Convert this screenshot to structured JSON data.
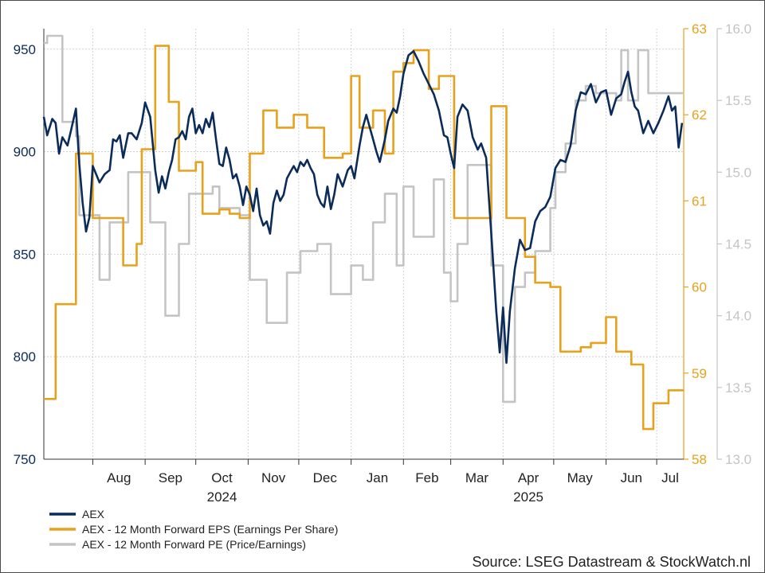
{
  "chart_data": {
    "type": "line",
    "x_months": [
      "Aug",
      "Sep",
      "Oct",
      "Nov",
      "Dec",
      "Jan",
      "Feb",
      "Mar",
      "Apr",
      "May",
      "Jun",
      "Jul"
    ],
    "x_years": [
      "2024",
      "2025"
    ],
    "x_range": [
      "2024-07-03",
      "2025-07-17"
    ],
    "grid": true,
    "legend_position": "bottom-left",
    "source": "Source: LSEG Datastream & StockWatch.nl",
    "axes": {
      "left": {
        "series": "AEX",
        "range": [
          750,
          960
        ],
        "ticks": [
          "750",
          "800",
          "850",
          "900",
          "950"
        ],
        "color": "#0b2c5a"
      },
      "right_eps": {
        "series": "AEX - 12 Month Forward EPS (Earnings Per Share)",
        "range": [
          58,
          63
        ],
        "ticks": [
          "58",
          "59",
          "60",
          "61",
          "62",
          "63"
        ],
        "color": "#e8a11c"
      },
      "right_pe": {
        "series": "AEX - 12 Month Forward PE (Price/Earnings)",
        "range": [
          13.0,
          16.0
        ],
        "ticks": [
          "13.0",
          "13.5",
          "14.0",
          "14.5",
          "15.0",
          "15.5",
          "16.0"
        ],
        "color": "#c4c4c4"
      }
    },
    "series": [
      {
        "name": "AEX",
        "axis": "left",
        "color": "#0b2c5a",
        "points": [
          [
            "2024-07-03",
            917
          ],
          [
            "2024-07-05",
            908
          ],
          [
            "2024-07-08",
            916
          ],
          [
            "2024-07-10",
            914
          ],
          [
            "2024-07-12",
            899
          ],
          [
            "2024-07-14",
            907
          ],
          [
            "2024-07-17",
            903
          ],
          [
            "2024-07-19",
            910
          ],
          [
            "2024-07-22",
            921
          ],
          [
            "2024-07-24",
            894
          ],
          [
            "2024-07-26",
            875
          ],
          [
            "2024-07-28",
            861
          ],
          [
            "2024-07-30",
            868
          ],
          [
            "2024-08-01",
            893
          ],
          [
            "2024-08-05",
            885
          ],
          [
            "2024-08-08",
            889
          ],
          [
            "2024-08-11",
            891
          ],
          [
            "2024-08-13",
            906
          ],
          [
            "2024-08-15",
            905
          ],
          [
            "2024-08-17",
            908
          ],
          [
            "2024-08-19",
            897
          ],
          [
            "2024-08-22",
            909
          ],
          [
            "2024-08-24",
            909
          ],
          [
            "2024-08-27",
            906
          ],
          [
            "2024-08-30",
            914
          ],
          [
            "2024-09-01",
            924
          ],
          [
            "2024-09-04",
            917
          ],
          [
            "2024-09-07",
            891
          ],
          [
            "2024-09-09",
            880
          ],
          [
            "2024-09-11",
            888
          ],
          [
            "2024-09-13",
            882
          ],
          [
            "2024-09-15",
            890
          ],
          [
            "2024-09-17",
            896
          ],
          [
            "2024-09-19",
            906
          ],
          [
            "2024-09-21",
            907
          ],
          [
            "2024-09-23",
            910
          ],
          [
            "2024-09-25",
            906
          ],
          [
            "2024-09-27",
            917
          ],
          [
            "2024-09-29",
            921
          ],
          [
            "2024-10-01",
            909
          ],
          [
            "2024-10-03",
            913
          ],
          [
            "2024-10-05",
            909
          ],
          [
            "2024-10-07",
            916
          ],
          [
            "2024-10-09",
            912
          ],
          [
            "2024-10-11",
            919
          ],
          [
            "2024-10-13",
            906
          ],
          [
            "2024-10-15",
            894
          ],
          [
            "2024-10-17",
            893
          ],
          [
            "2024-10-19",
            902
          ],
          [
            "2024-10-21",
            896
          ],
          [
            "2024-10-23",
            887
          ],
          [
            "2024-10-25",
            889
          ],
          [
            "2024-10-27",
            883
          ],
          [
            "2024-10-29",
            874
          ],
          [
            "2024-10-31",
            883
          ],
          [
            "2024-11-02",
            879
          ],
          [
            "2024-11-04",
            871
          ],
          [
            "2024-11-06",
            882
          ],
          [
            "2024-11-08",
            869
          ],
          [
            "2024-11-10",
            864
          ],
          [
            "2024-11-12",
            866
          ],
          [
            "2024-11-14",
            860
          ],
          [
            "2024-11-16",
            875
          ],
          [
            "2024-11-18",
            881
          ],
          [
            "2024-11-20",
            876
          ],
          [
            "2024-11-22",
            879
          ],
          [
            "2024-11-24",
            887
          ],
          [
            "2024-11-26",
            890
          ],
          [
            "2024-11-28",
            893
          ],
          [
            "2024-11-30",
            890
          ],
          [
            "2024-12-02",
            895
          ],
          [
            "2024-12-04",
            893
          ],
          [
            "2024-12-06",
            896
          ],
          [
            "2024-12-08",
            892
          ],
          [
            "2024-12-10",
            889
          ],
          [
            "2024-12-12",
            879
          ],
          [
            "2024-12-14",
            875
          ],
          [
            "2024-12-16",
            873
          ],
          [
            "2024-12-18",
            883
          ],
          [
            "2024-12-20",
            872
          ],
          [
            "2024-12-22",
            879
          ],
          [
            "2024-12-24",
            889
          ],
          [
            "2024-12-27",
            883
          ],
          [
            "2024-12-30",
            891
          ],
          [
            "2025-01-01",
            893
          ],
          [
            "2025-01-03",
            887
          ],
          [
            "2025-01-06",
            903
          ],
          [
            "2025-01-08",
            912
          ],
          [
            "2025-01-10",
            918
          ],
          [
            "2025-01-12",
            912
          ],
          [
            "2025-01-14",
            906
          ],
          [
            "2025-01-16",
            900
          ],
          [
            "2025-01-18",
            895
          ],
          [
            "2025-01-21",
            906
          ],
          [
            "2025-01-23",
            915
          ],
          [
            "2025-01-26",
            921
          ],
          [
            "2025-01-28",
            919
          ],
          [
            "2025-01-30",
            927
          ],
          [
            "2025-02-01",
            938
          ],
          [
            "2025-02-04",
            947
          ],
          [
            "2025-02-07",
            949
          ],
          [
            "2025-02-10",
            944
          ],
          [
            "2025-02-13",
            938
          ],
          [
            "2025-02-16",
            933
          ],
          [
            "2025-02-19",
            928
          ],
          [
            "2025-02-22",
            920
          ],
          [
            "2025-02-25",
            908
          ],
          [
            "2025-02-27",
            907
          ],
          [
            "2025-03-01",
            899
          ],
          [
            "2025-03-03",
            892
          ],
          [
            "2025-03-05",
            917
          ],
          [
            "2025-03-08",
            923
          ],
          [
            "2025-03-11",
            920
          ],
          [
            "2025-03-14",
            907
          ],
          [
            "2025-03-17",
            901
          ],
          [
            "2025-03-19",
            904
          ],
          [
            "2025-03-22",
            897
          ],
          [
            "2025-03-25",
            860
          ],
          [
            "2025-03-28",
            822
          ],
          [
            "2025-03-30",
            802
          ],
          [
            "2025-04-01",
            824
          ],
          [
            "2025-04-03",
            797
          ],
          [
            "2025-04-05",
            822
          ],
          [
            "2025-04-08",
            843
          ],
          [
            "2025-04-11",
            857
          ],
          [
            "2025-04-14",
            852
          ],
          [
            "2025-04-17",
            853
          ],
          [
            "2025-04-20",
            866
          ],
          [
            "2025-04-23",
            871
          ],
          [
            "2025-04-26",
            873
          ],
          [
            "2025-04-29",
            878
          ],
          [
            "2025-05-02",
            892
          ],
          [
            "2025-05-05",
            896
          ],
          [
            "2025-05-08",
            895
          ],
          [
            "2025-05-11",
            903
          ],
          [
            "2025-05-14",
            920
          ],
          [
            "2025-05-17",
            929
          ],
          [
            "2025-05-20",
            928
          ],
          [
            "2025-05-23",
            933
          ],
          [
            "2025-05-26",
            924
          ],
          [
            "2025-05-29",
            929
          ],
          [
            "2025-06-01",
            930
          ],
          [
            "2025-06-04",
            918
          ],
          [
            "2025-06-07",
            926
          ],
          [
            "2025-06-10",
            928
          ],
          [
            "2025-06-12",
            934
          ],
          [
            "2025-06-14",
            939
          ],
          [
            "2025-06-16",
            929
          ],
          [
            "2025-06-18",
            922
          ],
          [
            "2025-06-20",
            920
          ],
          [
            "2025-06-23",
            909
          ],
          [
            "2025-06-26",
            915
          ],
          [
            "2025-06-29",
            909
          ],
          [
            "2025-07-02",
            914
          ],
          [
            "2025-07-05",
            920
          ],
          [
            "2025-07-08",
            927
          ],
          [
            "2025-07-10",
            920
          ],
          [
            "2025-07-12",
            922
          ],
          [
            "2025-07-14",
            902
          ],
          [
            "2025-07-16",
            914
          ]
        ]
      },
      {
        "name": "AEX - 12 Month Forward EPS (Earnings Per Share)",
        "axis": "right_eps",
        "color": "#e8a11c",
        "step": true,
        "points": [
          [
            "2024-07-03",
            58.7
          ],
          [
            "2024-07-10",
            59.8
          ],
          [
            "2024-07-22",
            61.55
          ],
          [
            "2024-08-01",
            60.8
          ],
          [
            "2024-08-19",
            60.25
          ],
          [
            "2024-08-27",
            60.5
          ],
          [
            "2024-08-30",
            61.6
          ],
          [
            "2024-09-07",
            62.8
          ],
          [
            "2024-09-15",
            62.15
          ],
          [
            "2024-09-21",
            61.35
          ],
          [
            "2024-10-01",
            61.45
          ],
          [
            "2024-10-05",
            60.85
          ],
          [
            "2024-10-15",
            60.9
          ],
          [
            "2024-10-21",
            60.85
          ],
          [
            "2024-10-27",
            60.8
          ],
          [
            "2024-11-02",
            61.55
          ],
          [
            "2024-11-10",
            62.05
          ],
          [
            "2024-11-18",
            61.85
          ],
          [
            "2024-11-28",
            62.0
          ],
          [
            "2024-12-06",
            61.85
          ],
          [
            "2024-12-16",
            61.5
          ],
          [
            "2024-12-27",
            61.55
          ],
          [
            "2025-01-01",
            62.45
          ],
          [
            "2025-01-06",
            61.85
          ],
          [
            "2025-01-14",
            62.05
          ],
          [
            "2025-01-21",
            61.55
          ],
          [
            "2025-01-26",
            62.5
          ],
          [
            "2025-02-01",
            62.6
          ],
          [
            "2025-02-07",
            62.75
          ],
          [
            "2025-02-16",
            62.3
          ],
          [
            "2025-02-22",
            62.45
          ],
          [
            "2025-03-03",
            60.8
          ],
          [
            "2025-03-25",
            62.1
          ],
          [
            "2025-04-03",
            60.8
          ],
          [
            "2025-04-14",
            60.35
          ],
          [
            "2025-04-20",
            60.05
          ],
          [
            "2025-04-29",
            60.0
          ],
          [
            "2025-05-05",
            59.25
          ],
          [
            "2025-05-17",
            59.3
          ],
          [
            "2025-05-23",
            59.35
          ],
          [
            "2025-06-01",
            59.65
          ],
          [
            "2025-06-07",
            59.25
          ],
          [
            "2025-06-16",
            59.1
          ],
          [
            "2025-06-23",
            58.35
          ],
          [
            "2025-06-29",
            58.65
          ],
          [
            "2025-07-08",
            58.8
          ],
          [
            "2025-07-17",
            58.8
          ]
        ]
      },
      {
        "name": "AEX - 12 Month Forward PE (Price/Earnings)",
        "axis": "right_pe",
        "color": "#c4c4c4",
        "step": true,
        "points": [
          [
            "2024-07-03",
            15.9
          ],
          [
            "2024-07-05",
            15.95
          ],
          [
            "2024-07-14",
            15.35
          ],
          [
            "2024-07-22",
            15.25
          ],
          [
            "2024-07-24",
            14.7
          ],
          [
            "2024-08-01",
            14.7
          ],
          [
            "2024-08-05",
            14.25
          ],
          [
            "2024-08-11",
            14.65
          ],
          [
            "2024-08-17",
            14.65
          ],
          [
            "2024-08-22",
            15.0
          ],
          [
            "2024-08-30",
            15.0
          ],
          [
            "2024-09-04",
            14.65
          ],
          [
            "2024-09-09",
            14.65
          ],
          [
            "2024-09-13",
            14.0
          ],
          [
            "2024-09-21",
            14.5
          ],
          [
            "2024-09-27",
            14.85
          ],
          [
            "2024-10-03",
            14.85
          ],
          [
            "2024-10-11",
            14.9
          ],
          [
            "2024-10-15",
            14.75
          ],
          [
            "2024-10-21",
            14.75
          ],
          [
            "2024-10-27",
            14.7
          ],
          [
            "2024-11-02",
            14.25
          ],
          [
            "2024-11-12",
            13.95
          ],
          [
            "2024-11-24",
            14.3
          ],
          [
            "2024-12-02",
            14.45
          ],
          [
            "2024-12-12",
            14.5
          ],
          [
            "2024-12-20",
            14.15
          ],
          [
            "2025-01-01",
            14.35
          ],
          [
            "2025-01-08",
            14.25
          ],
          [
            "2025-01-14",
            14.65
          ],
          [
            "2025-01-21",
            14.85
          ],
          [
            "2025-01-28",
            14.35
          ],
          [
            "2025-02-01",
            14.9
          ],
          [
            "2025-02-07",
            14.55
          ],
          [
            "2025-02-19",
            14.95
          ],
          [
            "2025-02-25",
            14.3
          ],
          [
            "2025-03-01",
            14.1
          ],
          [
            "2025-03-05",
            14.5
          ],
          [
            "2025-03-11",
            15.05
          ],
          [
            "2025-03-22",
            15.05
          ],
          [
            "2025-03-25",
            14.35
          ],
          [
            "2025-04-01",
            13.4
          ],
          [
            "2025-04-08",
            14.2
          ],
          [
            "2025-04-14",
            14.3
          ],
          [
            "2025-04-20",
            14.45
          ],
          [
            "2025-04-29",
            14.75
          ],
          [
            "2025-05-02",
            15.0
          ],
          [
            "2025-05-08",
            15.2
          ],
          [
            "2025-05-14",
            15.5
          ],
          [
            "2025-05-20",
            15.6
          ],
          [
            "2025-05-26",
            15.55
          ],
          [
            "2025-06-01",
            15.55
          ],
          [
            "2025-06-07",
            15.5
          ],
          [
            "2025-06-10",
            15.85
          ],
          [
            "2025-06-14",
            15.5
          ],
          [
            "2025-06-20",
            15.85
          ],
          [
            "2025-06-26",
            15.55
          ],
          [
            "2025-07-02",
            15.55
          ],
          [
            "2025-07-17",
            15.55
          ]
        ]
      }
    ]
  }
}
